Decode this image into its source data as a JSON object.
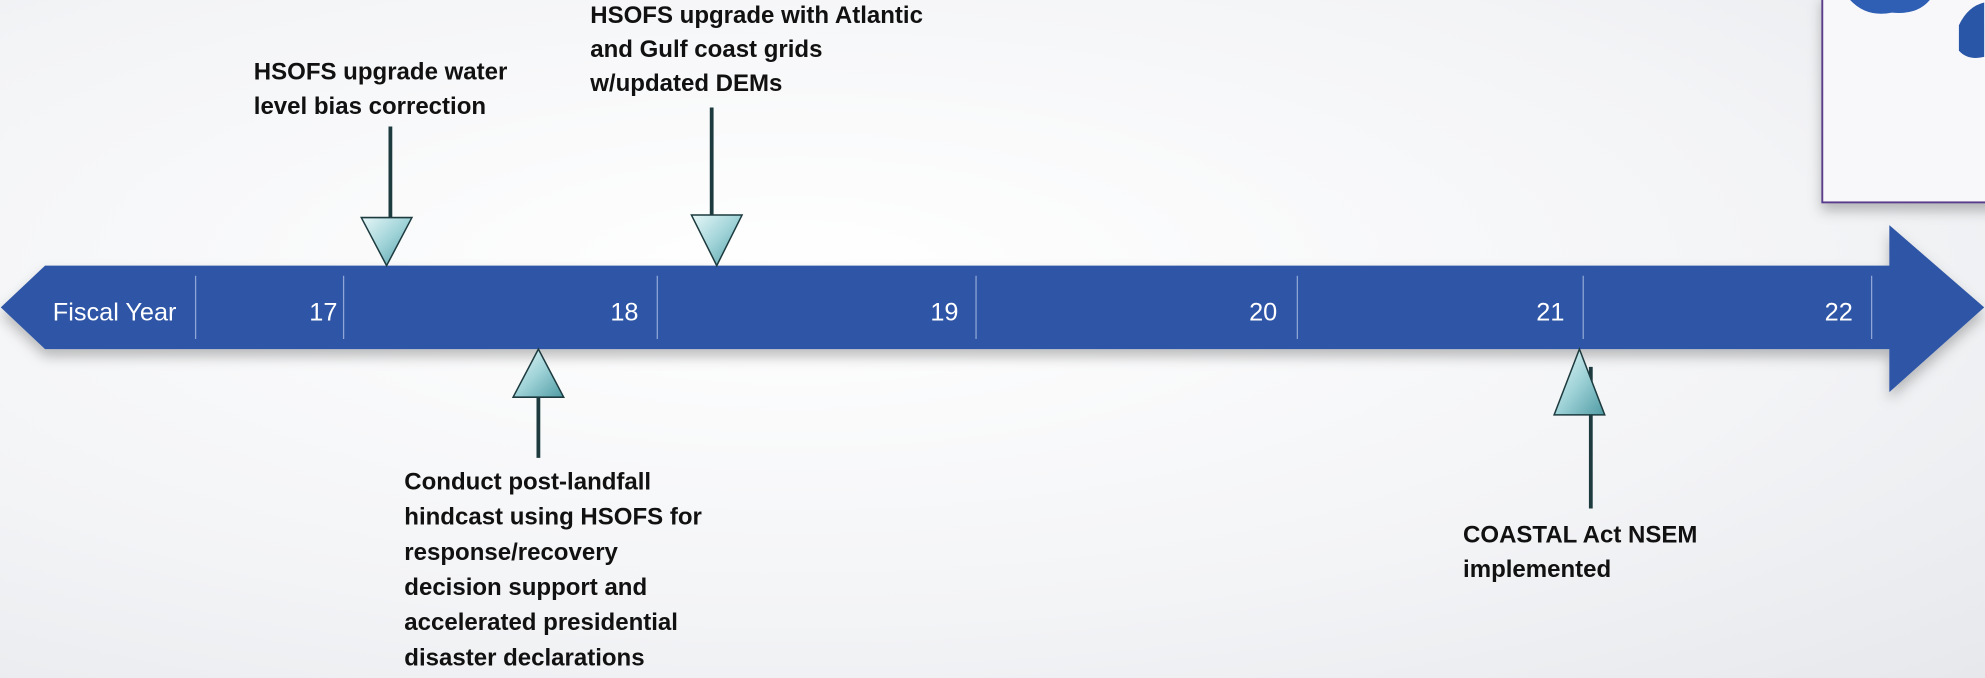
{
  "timeline": {
    "label": "Fiscal Year",
    "years": [
      "17",
      "18",
      "19",
      "20",
      "21",
      "22"
    ]
  },
  "events": [
    {
      "lines": [
        "HSOFS upgrade water",
        "level bias correction"
      ]
    },
    {
      "lines": [
        "HSOFS upgrade with Atlantic",
        "and Gulf coast grids",
        "w/updated DEMs"
      ]
    },
    {
      "lines": [
        "Conduct post-landfall",
        "hindcast using HSOFS for",
        "response/recovery",
        "decision support and",
        "accelerated presidential",
        "disaster declarations"
      ]
    },
    {
      "lines": [
        "COASTAL Act NSEM",
        "implemented"
      ]
    }
  ]
}
